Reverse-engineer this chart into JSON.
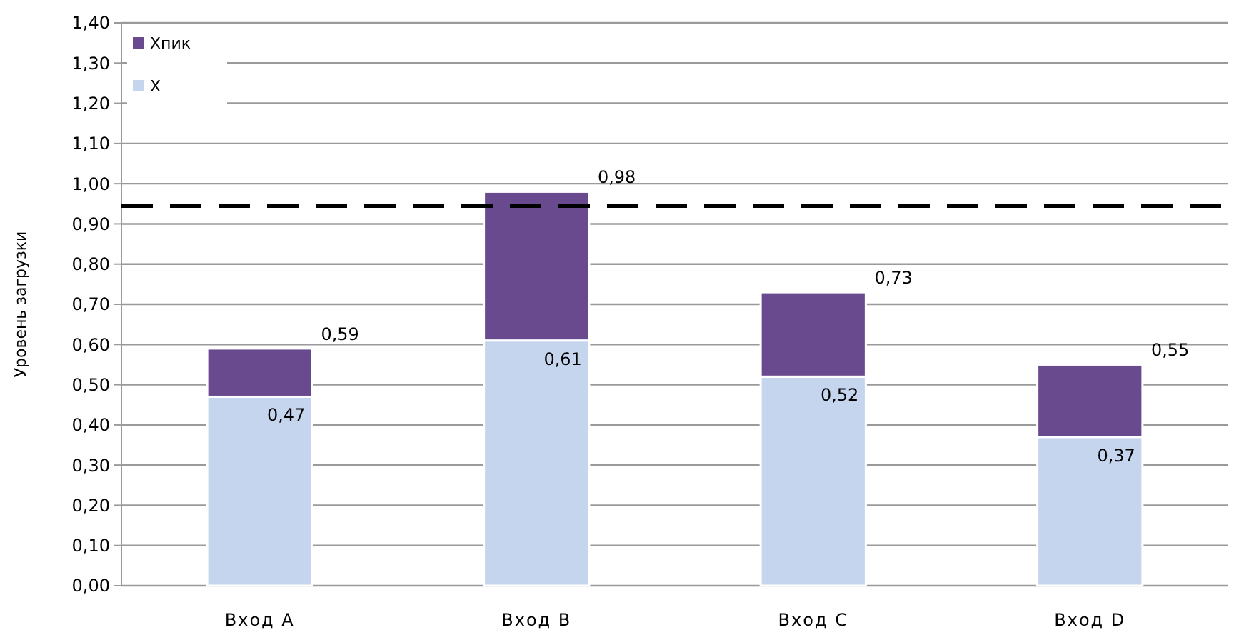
{
  "chart_data": {
    "type": "bar",
    "stacked": true,
    "ylabel": "Уровень загрузки",
    "categories": [
      "Вход A",
      "Вход B",
      "Вход C",
      "Вход D"
    ],
    "series": [
      {
        "name": "Х",
        "color": "#c5d5ee",
        "values": [
          0.47,
          0.61,
          0.52,
          0.37
        ],
        "value_labels": [
          "0,47",
          "0,61",
          "0,52",
          "0,37"
        ]
      },
      {
        "name": "Хпик",
        "color": "#6a4a8e",
        "values": [
          0.12,
          0.37,
          0.21,
          0.18
        ]
      }
    ],
    "totals": [
      "0,59",
      "0,98",
      "0,73",
      "0,55"
    ],
    "ylim": [
      0,
      1.4
    ],
    "yticks": [
      {
        "value": 0,
        "label": "0,00"
      },
      {
        "value": 0.1,
        "label": "0,10"
      },
      {
        "value": 0.2,
        "label": "0,20"
      },
      {
        "value": 0.3,
        "label": "0,30"
      },
      {
        "value": 0.4,
        "label": "0,40"
      },
      {
        "value": 0.5,
        "label": "0,50"
      },
      {
        "value": 0.6,
        "label": "0,60"
      },
      {
        "value": 0.7,
        "label": "0,70"
      },
      {
        "value": 0.8,
        "label": "0,80"
      },
      {
        "value": 0.9,
        "label": "0,90"
      },
      {
        "value": 1,
        "label": "1,00"
      },
      {
        "value": 1.1,
        "label": "1,10"
      },
      {
        "value": 1.2,
        "label": "1,20"
      },
      {
        "value": 1.3,
        "label": "1,30"
      },
      {
        "value": 1.4,
        "label": "1,40"
      }
    ],
    "ref_lines": [
      {
        "axis": "y",
        "value": 0.945,
        "color": "#000000",
        "line_style": "dashed"
      }
    ],
    "grid": "y",
    "legend": "top left"
  }
}
